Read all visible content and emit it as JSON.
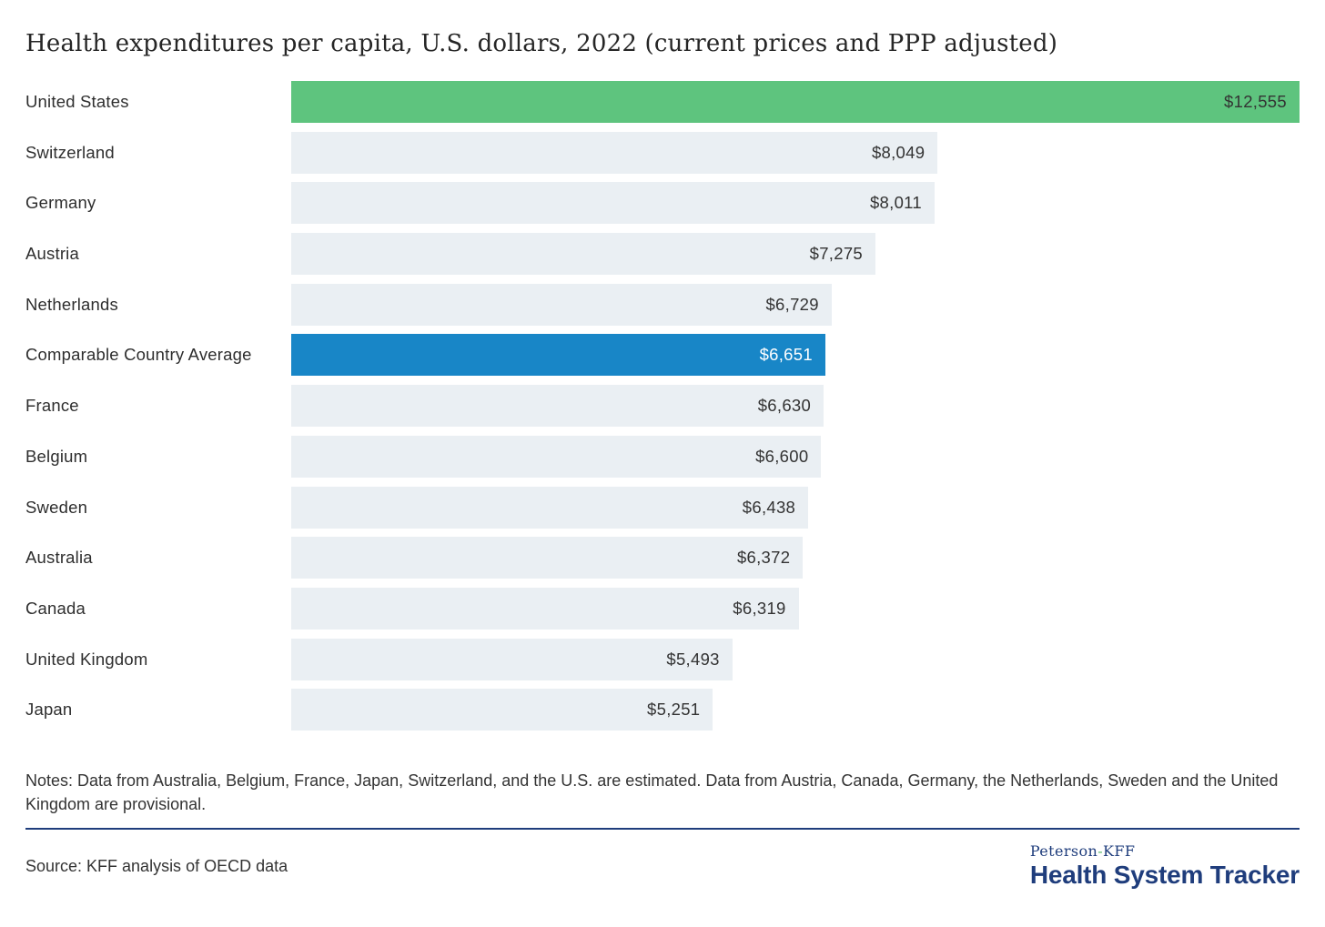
{
  "title": "Health expenditures per capita, U.S. dollars, 2022 (current prices and PPP adjusted)",
  "chart_data": {
    "type": "bar",
    "orientation": "horizontal",
    "title": "Health expenditures per capita, U.S. dollars, 2022 (current prices and PPP adjusted)",
    "xlim": [
      0,
      12555
    ],
    "unit": "U.S. dollars",
    "grid": false,
    "legend": false,
    "categories": [
      "United States",
      "Switzerland",
      "Germany",
      "Austria",
      "Netherlands",
      "Comparable Country Average",
      "France",
      "Belgium",
      "Sweden",
      "Australia",
      "Canada",
      "United Kingdom",
      "Japan"
    ],
    "values": [
      12555,
      8049,
      8011,
      7275,
      6729,
      6651,
      6630,
      6600,
      6438,
      6372,
      6319,
      5493,
      5251
    ],
    "value_labels": [
      "$12,555",
      "$8,049",
      "$8,011",
      "$7,275",
      "$6,729",
      "$6,651",
      "$6,630",
      "$6,600",
      "$6,438",
      "$6,372",
      "$6,319",
      "$5,493",
      "$5,251"
    ],
    "bar_types": [
      "us",
      "default",
      "default",
      "default",
      "default",
      "average",
      "default",
      "default",
      "default",
      "default",
      "default",
      "default",
      "default"
    ]
  },
  "notes": "Notes: Data from Australia, Belgium, France, Japan, Switzerland, and the U.S. are estimated. Data from Austria, Canada, Germany, the Netherlands, Sweden and the United Kingdom are provisional.",
  "source": "Source: KFF analysis of OECD data",
  "logo": {
    "brand_left": "Peterson",
    "brand_sep": "-",
    "brand_right": "KFF",
    "product": "Health System Tracker"
  },
  "colors": {
    "us_bar": "#5EC47E",
    "average_bar": "#1886C7",
    "default_bar": "#EAEFF3",
    "average_text": "#FFFFFF",
    "text": "#2E2E2E",
    "navy": "#1F3D7C",
    "sep_green": "#5AB96B"
  }
}
